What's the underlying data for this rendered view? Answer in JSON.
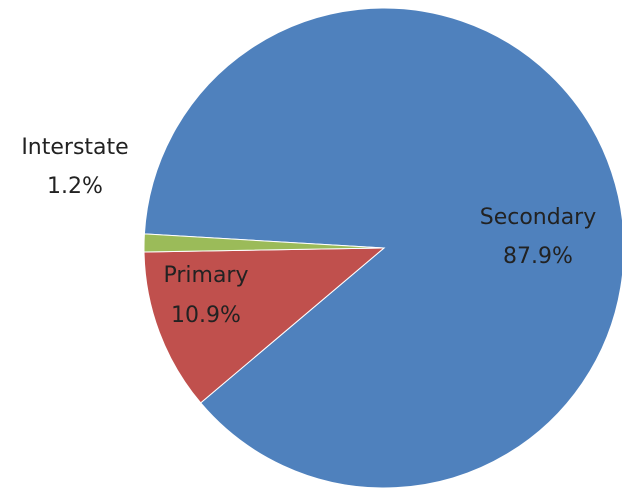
{
  "chart_data": {
    "type": "pie",
    "title": "",
    "slices": [
      {
        "label": "Secondary",
        "value": 87.9,
        "value_label": "87.9%",
        "color": "#4f81bd"
      },
      {
        "label": "Primary",
        "value": 10.9,
        "value_label": "10.9%",
        "color": "#c0504d"
      },
      {
        "label": "Interstate",
        "value": 1.2,
        "value_label": "1.2%",
        "color": "#9bbb59"
      }
    ],
    "legend": "none",
    "label_style": "category name and percentage"
  }
}
